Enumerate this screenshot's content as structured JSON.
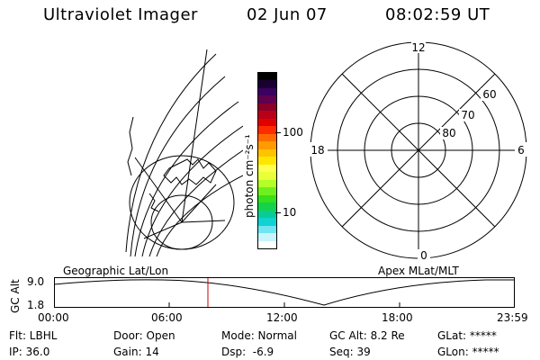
{
  "header": {
    "title": "Ultraviolet Imager",
    "date": "02 Jun 07",
    "time": "08:02:59 UT"
  },
  "colorbar": {
    "label": "photon cm⁻²s⁻¹",
    "ticks": [
      "100",
      "10"
    ],
    "colors": [
      "#000000",
      "#1a0030",
      "#3c0060",
      "#600050",
      "#8a0028",
      "#b80018",
      "#e00000",
      "#ff2c00",
      "#ff6a00",
      "#ff9a00",
      "#ffc400",
      "#ffe600",
      "#ffff50",
      "#e8ff3a",
      "#b4ff28",
      "#6ef01e",
      "#36e01a",
      "#14d24a",
      "#08cc96",
      "#10d2d2",
      "#70e4f0",
      "#c8f4fc",
      "#ffffff"
    ]
  },
  "geo_panel": {
    "label": "Geographic Lat/Lon"
  },
  "polar_panel": {
    "label": "Apex MLat/MLT",
    "mlt_labels": {
      "top": "12",
      "left": "18",
      "right": "6",
      "bottom": "0"
    },
    "lat_labels": [
      "60",
      "70",
      "80"
    ]
  },
  "timeline": {
    "axis_label": "GC Alt",
    "y_ticks": [
      "9.0",
      "1.8"
    ],
    "x_ticks": [
      "00:00",
      "06:00",
      "12:00",
      "18:00",
      "23:59"
    ]
  },
  "info": {
    "flt": "Flt: LBHL",
    "ip": "IP: 36.0",
    "door": "Door: Open",
    "gain": "Gain: 14",
    "mode": "Mode: Normal",
    "dsp": "Dsp:  -6.9",
    "gcalt": "GC Alt: 8.2 Re",
    "seq": "Seq: 39",
    "glat": "GLat: *****",
    "glon": "GLon: *****"
  }
}
